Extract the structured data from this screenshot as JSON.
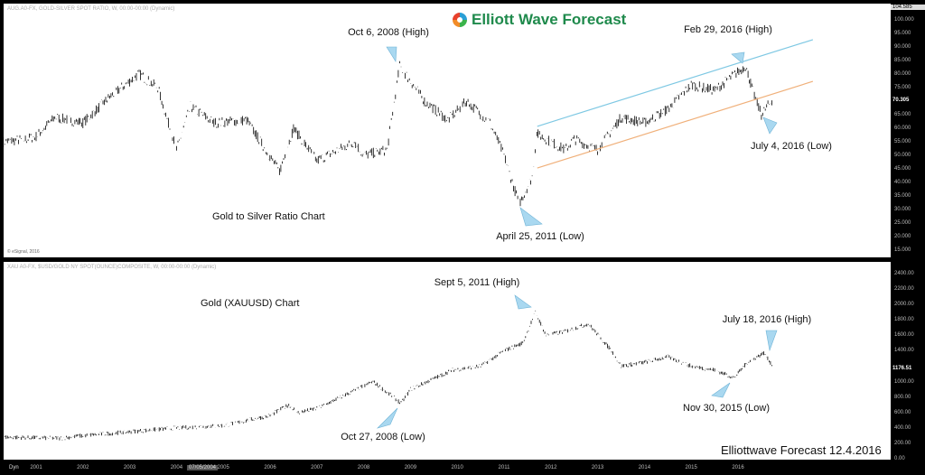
{
  "top_header": "AUG.A0-FX, GOLD-SILVER SPOT RATIO, W, 00:00-00:00 (Dynamic)",
  "bottom_header": "XAU A0-FX, $USD/GOLD NY SPOT(OUNCE)COMPOSITE, W, 00:00-00:00 (Dynamic)",
  "copyright": "© eSignal, 2016",
  "logo": {
    "text": "Elliott Wave Forecast",
    "color": "#1f8a4c"
  },
  "watermark": "Elliottwave Forecast 12.4.2016",
  "time_axis": {
    "dyn_label": "Dyn",
    "cursor_date": "07/05/2004"
  },
  "chart_data": [
    {
      "type": "line",
      "title": "Gold to Silver Ratio Chart",
      "ylim": [
        15,
        104.585
      ],
      "y_ticks": [
        "100.000",
        "95.000",
        "90.000",
        "85.000",
        "80.000",
        "75.000",
        "65.000",
        "60.000",
        "55.000",
        "50.000",
        "45.000",
        "40.000",
        "35.000",
        "30.000",
        "25.000",
        "20.000",
        "15.000"
      ],
      "y_max_label": "104.585",
      "last_value_label": "70.305",
      "series": [
        {
          "color": "#000000",
          "points": [
            [
              2000.3,
              55
            ],
            [
              2000.8,
              56
            ],
            [
              2001.0,
              57
            ],
            [
              2001.4,
              64
            ],
            [
              2002.0,
              62
            ],
            [
              2002.6,
              72
            ],
            [
              2003.2,
              80
            ],
            [
              2003.6,
              75
            ],
            [
              2004.0,
              52
            ],
            [
              2004.3,
              68
            ],
            [
              2004.8,
              62
            ],
            [
              2005.5,
              63
            ],
            [
              2006.2,
              44
            ],
            [
              2006.5,
              60
            ],
            [
              2007.0,
              48
            ],
            [
              2007.8,
              55
            ],
            [
              2008.0,
              50
            ],
            [
              2008.5,
              52
            ],
            [
              2008.77,
              83
            ],
            [
              2009.3,
              70
            ],
            [
              2009.8,
              63
            ],
            [
              2010.2,
              70
            ],
            [
              2010.7,
              62
            ],
            [
              2011.0,
              50
            ],
            [
              2011.32,
              32
            ],
            [
              2011.6,
              42
            ],
            [
              2011.7,
              58
            ],
            [
              2012.3,
              52
            ],
            [
              2012.5,
              56
            ],
            [
              2013.0,
              52
            ],
            [
              2013.5,
              64
            ],
            [
              2014.0,
              62
            ],
            [
              2014.5,
              67
            ],
            [
              2015.0,
              76
            ],
            [
              2015.5,
              74
            ],
            [
              2016.16,
              83
            ],
            [
              2016.35,
              72
            ],
            [
              2016.5,
              65
            ],
            [
              2016.75,
              71
            ]
          ]
        }
      ],
      "trendlines": [
        {
          "color": "#7ec8e3",
          "from": [
            2011.71,
            60.7
          ],
          "to": [
            2017.6,
            92.7
          ]
        },
        {
          "color": "#f0b07a",
          "from": [
            2011.71,
            45.3
          ],
          "to": [
            2017.6,
            77.3
          ]
        }
      ],
      "annotations": [
        "Oct 6, 2008 (High)",
        "Feb 29, 2016 (High)",
        "July 4, 2016 (Low)",
        "April 25, 2011 (Low)"
      ]
    },
    {
      "type": "line",
      "title": "Gold (XAUUSD) Chart",
      "ylim": [
        0,
        2400
      ],
      "y_ticks": [
        "2400.00",
        "2200.00",
        "2000.00",
        "1800.00",
        "1600.00",
        "1400.00",
        "1000.00",
        "800.00",
        "600.00",
        "400.00",
        "200.00",
        "0.00"
      ],
      "last_value_label": "1176.51",
      "series": [
        {
          "color": "#000000",
          "points": [
            [
              2000.3,
              280
            ],
            [
              2001.5,
              265
            ],
            [
              2002.0,
              300
            ],
            [
              2003.0,
              350
            ],
            [
              2004.0,
              400
            ],
            [
              2005.0,
              430
            ],
            [
              2006.0,
              560
            ],
            [
              2006.4,
              700
            ],
            [
              2006.6,
              600
            ],
            [
              2007.0,
              650
            ],
            [
              2008.2,
              1000
            ],
            [
              2008.8,
              720
            ],
            [
              2009.0,
              900
            ],
            [
              2009.9,
              1150
            ],
            [
              2010.5,
              1200
            ],
            [
              2011.0,
              1400
            ],
            [
              2011.4,
              1500
            ],
            [
              2011.67,
              1900
            ],
            [
              2011.9,
              1600
            ],
            [
              2012.3,
              1650
            ],
            [
              2012.8,
              1750
            ],
            [
              2013.3,
              1400
            ],
            [
              2013.5,
              1200
            ],
            [
              2014.0,
              1250
            ],
            [
              2014.5,
              1320
            ],
            [
              2015.0,
              1200
            ],
            [
              2015.5,
              1150
            ],
            [
              2015.92,
              1050
            ],
            [
              2016.2,
              1250
            ],
            [
              2016.55,
              1370
            ],
            [
              2016.75,
              1200
            ]
          ]
        }
      ],
      "annotations": [
        "Sept 5, 2011 (High)",
        "July 18, 2016 (High)",
        "Nov 30, 2015 (Low)",
        "Oct 27, 2008 (Low)"
      ]
    }
  ],
  "x_ticks": [
    "2001",
    "2002",
    "2003",
    "2004",
    "2005",
    "2006",
    "2007",
    "2008",
    "2009",
    "2010",
    "2011",
    "2012",
    "2013",
    "2014",
    "2015",
    "2016"
  ],
  "callout_color": "#a9d8f0"
}
